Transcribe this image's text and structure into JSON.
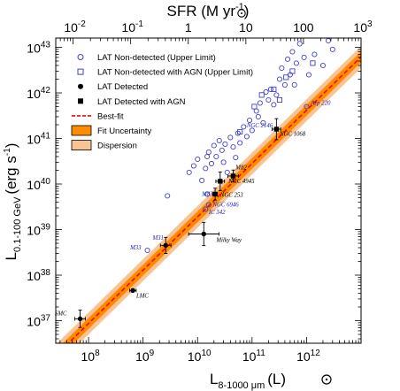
{
  "chart_data": {
    "type": "scatter",
    "xlabel": {
      "main": "L",
      "sub": "8-1000 μm",
      "unit": "(L",
      "unit_tail": ")"
    },
    "ylabel": {
      "main": "L",
      "sub": "0.1-100 GeV",
      "unit": "(erg s",
      "unit_sup": "-1",
      "unit_tail": ")"
    },
    "top_axis_label": {
      "main": "SFR (M",
      "unit_tail": " yr",
      "unit_sup": "-1",
      "close": ")"
    },
    "x_scale": "log",
    "y_scale": "log",
    "xlim": [
      25000000.0,
      10000000000000.0
    ],
    "ylim": [
      3.2e+36,
      1.6e+43
    ],
    "top_xlim": [
      0.005,
      1000
    ],
    "x_ticks": [
      {
        "exp": "8",
        "value": 100000000.0
      },
      {
        "exp": "9",
        "value": 1000000000.0
      },
      {
        "exp": "10",
        "value": 10000000000.0
      },
      {
        "exp": "11",
        "value": 100000000000.0
      },
      {
        "exp": "12",
        "value": 1000000000000.0
      }
    ],
    "y_ticks": [
      {
        "exp": "37",
        "value": 1e+37
      },
      {
        "exp": "38",
        "value": 1e+38
      },
      {
        "exp": "39",
        "value": 1e+39
      },
      {
        "exp": "40",
        "value": 1e+40
      },
      {
        "exp": "41",
        "value": 1e+41
      },
      {
        "exp": "42",
        "value": 1e+42
      },
      {
        "exp": "43",
        "value": 1e+43
      }
    ],
    "top_ticks": [
      {
        "exp": "-2",
        "value": 0.01
      },
      {
        "exp": "-1",
        "value": 0.1
      },
      {
        "exp": "",
        "label": "1",
        "value": 1
      },
      {
        "exp": "",
        "label": "10",
        "value": 10
      },
      {
        "exp": "",
        "label": "100",
        "value": 100
      },
      {
        "exp": "3",
        "value": 1000
      }
    ],
    "best_fit": {
      "slope": 1.17,
      "intercept": 39.28,
      "pivot_log_x": 10.0
    },
    "fit_uncertainty_halfwidth_dex": 0.12,
    "dispersion_halfwidth_dex": 0.24,
    "colors": {
      "band_inner": "#ff8c00",
      "band_outer": "#f9c495",
      "fit_line": "#ff0000",
      "upper_limit": "#4040d0",
      "detected": "#000000",
      "label_blue": "#2020c0"
    },
    "legend": {
      "position": "top-left",
      "entries": [
        {
          "label": "LAT Non-detected (Upper Limit)",
          "marker": "open-circle"
        },
        {
          "label": "LAT Non-detected with AGN (Upper Limit)",
          "marker": "open-square"
        },
        {
          "label": "LAT Detected",
          "marker": "filled-circle"
        },
        {
          "label": "LAT Detected with AGN",
          "marker": "filled-square"
        },
        {
          "label": "Best-fit",
          "marker": "dashed-line"
        },
        {
          "label": "Fit Uncertainty",
          "marker": "band-inner"
        },
        {
          "label": "Dispersion",
          "marker": "band-outer"
        }
      ]
    },
    "series": [
      {
        "name": "LAT Detected",
        "marker": "filled-circle",
        "points": [
          {
            "label": "SMC",
            "x": 70000000.0,
            "y": 1.1e+37,
            "xerr": [
              1.25,
              1.25
            ],
            "yerr": [
              1.55,
              1.55
            ]
          },
          {
            "label": "LMC",
            "x": 650000000.0,
            "y": 4.6e+37,
            "xerr": [
              1.15,
              1.15
            ],
            "yerr": [
              1.08,
              1.08
            ]
          },
          {
            "label": "M31",
            "x": 2600000000.0,
            "y": 4.5e+38,
            "xerr": [
              1.25,
              1.25
            ],
            "yerr": [
              1.5,
              1.5
            ]
          },
          {
            "label": "Milky Way",
            "x": 13000000000.0,
            "y": 8e+38,
            "xerr": [
              1.9,
              1.9
            ],
            "yerr": [
              1.8,
              1.8
            ]
          }
        ]
      },
      {
        "name": "LAT Detected with AGN",
        "marker": "filled-square",
        "points": [
          {
            "label": "NGC 253",
            "x": 21000000000.0,
            "y": 6e+39,
            "xerr": [
              1.1,
              1.1
            ],
            "yerr": [
              1.35,
              1.35
            ]
          },
          {
            "label": "M82",
            "x": 45000000000.0,
            "y": 1.5e+40,
            "xerr": [
              1.25,
              1.25
            ],
            "yerr": [
              1.35,
              1.35
            ]
          },
          {
            "label": "NGC 4945",
            "x": 26000000000.0,
            "y": 1.15e+40,
            "xerr": [
              1.2,
              1.2
            ],
            "yerr": [
              1.6,
              1.6
            ]
          },
          {
            "label": "NGC 1068",
            "x": 280000000000.0,
            "y": 1.6e+41,
            "xerr": [
              1.2,
              1.2
            ],
            "yerr": [
              1.7,
              1.7
            ]
          }
        ]
      },
      {
        "name": "LAT Non-detected (Upper Limit)",
        "marker": "open-circle",
        "points": [
          {
            "label": "M33",
            "x": 1200000000.0,
            "y": 3.5e+38
          },
          {
            "label": "NGC 6946",
            "x": 16000000000.0,
            "y": 3.5e+39
          },
          {
            "label": "IC 342",
            "x": 14000000000.0,
            "y": 2.8e+39
          },
          {
            "label": "M83",
            "x": 15000000000.0,
            "y": 6e+39
          },
          {
            "label": "NGC 2146",
            "x": 100000000000.0,
            "y": 1.5e+41
          },
          {
            "label": "Arp 220",
            "x": 1000000000000.0,
            "y": 5e+41
          },
          {
            "x": 2800000000.0,
            "y": 5.5e+39
          },
          {
            "x": 7000000000.0,
            "y": 1.8e+40
          },
          {
            "x": 8500000000.0,
            "y": 2.5e+40
          },
          {
            "x": 10000000000.0,
            "y": 3.5e+40
          },
          {
            "x": 12000000000.0,
            "y": 1.2e+40
          },
          {
            "x": 14000000000.0,
            "y": 2.2e+40
          },
          {
            "x": 16000000000.0,
            "y": 5e+40
          },
          {
            "x": 15000000000.0,
            "y": 4e+40
          },
          {
            "x": 18000000000.0,
            "y": 2.8e+40
          },
          {
            "x": 20000000000.0,
            "y": 7e+40
          },
          {
            "x": 22000000000.0,
            "y": 4e+40
          },
          {
            "x": 25000000000.0,
            "y": 9e+40
          },
          {
            "x": 28000000000.0,
            "y": 5.5e+40
          },
          {
            "x": 30000000000.0,
            "y": 3e+40
          },
          {
            "x": 32000000000.0,
            "y": 7.5e+40
          },
          {
            "x": 35000000000.0,
            "y": 1.8e+40
          },
          {
            "x": 40000000000.0,
            "y": 1.05e+41
          },
          {
            "x": 45000000000.0,
            "y": 6.5e+40
          },
          {
            "x": 50000000000.0,
            "y": 3.8e+40
          },
          {
            "x": 55000000000.0,
            "y": 1.3e+41
          },
          {
            "x": 60000000000.0,
            "y": 8e+40
          },
          {
            "x": 70000000000.0,
            "y": 1.8e+41
          },
          {
            "x": 80000000000.0,
            "y": 1.1e+41
          },
          {
            "x": 90000000000.0,
            "y": 2.5e+41
          },
          {
            "x": 120000000000.0,
            "y": 4e+41
          },
          {
            "x": 130000000000.0,
            "y": 3e+41
          },
          {
            "x": 140000000000.0,
            "y": 6e+41
          },
          {
            "x": 160000000000.0,
            "y": 2.2e+41
          },
          {
            "x": 180000000000.0,
            "y": 1.05e+42
          },
          {
            "x": 200000000000.0,
            "y": 7e+41
          },
          {
            "x": 220000000000.0,
            "y": 1.2e+42
          },
          {
            "x": 250000000000.0,
            "y": 5.5e+41
          },
          {
            "x": 280000000000.0,
            "y": 9e+41
          },
          {
            "x": 320000000000.0,
            "y": 2e+42
          },
          {
            "x": 350000000000.0,
            "y": 3.5e+42
          },
          {
            "x": 400000000000.0,
            "y": 1.5e+42
          },
          {
            "x": 450000000000.0,
            "y": 5.5e+42
          },
          {
            "x": 500000000000.0,
            "y": 2.5e+42
          },
          {
            "x": 550000000000.0,
            "y": 8e+42
          },
          {
            "x": 650000000000.0,
            "y": 4.5e+42
          },
          {
            "x": 750000000000.0,
            "y": 1.2e+43
          },
          {
            "x": 900000000000.0,
            "y": 6e+42
          },
          {
            "x": 1100000000000.0,
            "y": 2.5e+42
          },
          {
            "x": 1400000000000.0,
            "y": 7e+42
          },
          {
            "x": 2500000000000.0,
            "y": 1.4e+43
          },
          {
            "x": 3000000000000.0,
            "y": 9e+42
          },
          {
            "x": 600000000000.0,
            "y": 1.5e+42
          },
          {
            "x": 2000000000000.0,
            "y": 4e+42
          }
        ]
      },
      {
        "name": "LAT Non-detected with AGN (Upper Limit)",
        "marker": "open-square",
        "points": [
          {
            "x": 60000000000.0,
            "y": 1.4e+41
          },
          {
            "x": 110000000000.0,
            "y": 5e+41
          },
          {
            "x": 150000000000.0,
            "y": 9e+41
          },
          {
            "x": 250000000000.0,
            "y": 1.2e+42
          },
          {
            "x": 320000000000.0,
            "y": 7e+41
          },
          {
            "x": 420000000000.0,
            "y": 2.2e+42
          },
          {
            "x": 550000000000.0,
            "y": 3e+42
          },
          {
            "x": 1300000000000.0,
            "y": 4.5e+42
          }
        ]
      }
    ],
    "annotations": [
      {
        "text": "SMC",
        "x": 40000000.0,
        "y": 1.3e+37,
        "color": "#000000",
        "anchor": "end"
      },
      {
        "text": "LMC",
        "x": 750000000.0,
        "y": 3.2e+37,
        "color": "#000000",
        "anchor": "start"
      },
      {
        "text": "M31",
        "x": 1500000000.0,
        "y": 6e+38,
        "color": "#2020c0",
        "anchor": "start"
      },
      {
        "text": "M33",
        "x": 580000000.0,
        "y": 3.7e+38,
        "color": "#2020c0",
        "anchor": "start"
      },
      {
        "text": "Milky Way",
        "x": 22000000000.0,
        "y": 5.4e+38,
        "color": "#000000",
        "anchor": "start"
      },
      {
        "text": "NGC 253",
        "x": 26000000000.0,
        "y": 5.2e+39,
        "color": "#000000",
        "anchor": "start"
      },
      {
        "text": "M83",
        "x": 12000000000.0,
        "y": 5.5e+39,
        "color": "#2020c0",
        "anchor": "start"
      },
      {
        "text": "NGC 6946",
        "x": 19000000000.0,
        "y": 3.2e+39,
        "color": "#2020c0",
        "anchor": "start"
      },
      {
        "text": "IC 342",
        "x": 16000000000.0,
        "y": 2.2e+39,
        "color": "#2020c0",
        "anchor": "start"
      },
      {
        "text": "NGC 4945",
        "x": 37000000000.0,
        "y": 1.05e+40,
        "color": "#000000",
        "anchor": "start"
      },
      {
        "text": "M82",
        "x": 50000000000.0,
        "y": 2.1e+40,
        "color": "#000000",
        "anchor": "start"
      },
      {
        "text": "NGC 2146",
        "x": 80000000000.0,
        "y": 1.75e+41,
        "color": "#2020c0",
        "anchor": "start"
      },
      {
        "text": "NGC 1068",
        "x": 320000000000.0,
        "y": 1.15e+41,
        "color": "#000000",
        "anchor": "start"
      },
      {
        "text": "Arp 220",
        "x": 1200000000000.0,
        "y": 5.5e+41,
        "color": "#2020c0",
        "anchor": "start"
      }
    ]
  }
}
